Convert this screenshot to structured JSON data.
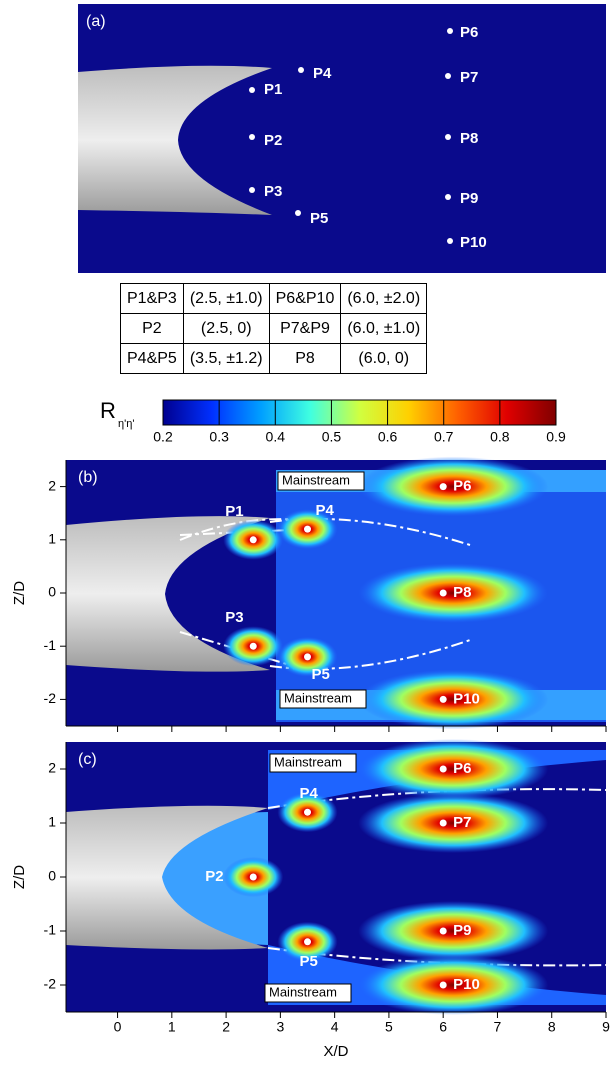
{
  "panel_a": {
    "label": "(a)",
    "points": [
      "P1",
      "P2",
      "P3",
      "P4",
      "P5",
      "P6",
      "P7",
      "P8",
      "P9",
      "P10"
    ]
  },
  "table": {
    "rows": [
      [
        "P1&P3",
        "(2.5, ±1.0)",
        "P6&P10",
        "(6.0, ±2.0)"
      ],
      [
        "P2",
        "(2.5, 0)",
        "P7&P9",
        "(6.0, ±1.0)"
      ],
      [
        "P4&P5",
        "(3.5, ±1.2)",
        "P8",
        "(6.0, 0)"
      ]
    ]
  },
  "colorbar": {
    "label": "R",
    "label_subscript": "η'η'",
    "lim": [
      0.2,
      0.9
    ],
    "ticks": [
      0.2,
      0.3,
      0.4,
      0.5,
      0.6,
      0.7,
      0.8,
      0.9
    ],
    "colors": [
      "#00008f",
      "#0030ff",
      "#00a0ff",
      "#40ffe0",
      "#d0ff40",
      "#ffd000",
      "#ff6000",
      "#e00000",
      "#800000"
    ]
  },
  "panels": [
    {
      "label": "(b)",
      "xlim": [
        -0.95,
        9
      ],
      "ylim": [
        -2.5,
        2.5
      ],
      "xticks": [
        0,
        1,
        2,
        3,
        4,
        5,
        6,
        7,
        8,
        9
      ],
      "yticks": [
        -2,
        -1,
        0,
        1,
        2
      ],
      "ylabel": "Z/D",
      "points": [
        {
          "name": "P1",
          "x": 2.5,
          "z": 1.0
        },
        {
          "name": "P3",
          "x": 2.5,
          "z": -1.0
        },
        {
          "name": "P4",
          "x": 3.5,
          "z": 1.2
        },
        {
          "name": "P5",
          "x": 3.5,
          "z": -1.2
        },
        {
          "name": "P6",
          "x": 6.0,
          "z": 2.0
        },
        {
          "name": "P8",
          "x": 6.0,
          "z": 0
        },
        {
          "name": "P10",
          "x": 6.0,
          "z": -2.0
        }
      ],
      "annotations": [
        "Mainstream",
        "Mainstream"
      ]
    },
    {
      "label": "(c)",
      "xlim": [
        -0.95,
        9
      ],
      "ylim": [
        -2.5,
        2.5
      ],
      "xticks": [
        0,
        1,
        2,
        3,
        4,
        5,
        6,
        7,
        8,
        9
      ],
      "yticks": [
        -2,
        -1,
        0,
        1,
        2
      ],
      "ylabel": "Z/D",
      "xlabel": "X/D",
      "points": [
        {
          "name": "P2",
          "x": 2.5,
          "z": 0
        },
        {
          "name": "P4",
          "x": 3.5,
          "z": 1.2
        },
        {
          "name": "P5",
          "x": 3.5,
          "z": -1.2
        },
        {
          "name": "P6",
          "x": 6.0,
          "z": 2.0
        },
        {
          "name": "P7",
          "x": 6.0,
          "z": 1.0
        },
        {
          "name": "P9",
          "x": 6.0,
          "z": -1.0
        },
        {
          "name": "P10",
          "x": 6.0,
          "z": -2.0
        }
      ],
      "annotations": [
        "Mainstream",
        "Mainstream"
      ]
    }
  ]
}
